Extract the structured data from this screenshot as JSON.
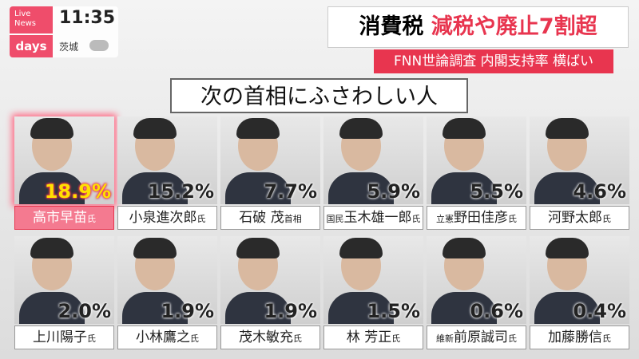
{
  "logo": {
    "line1": "Live",
    "line2": "News",
    "brand": "days"
  },
  "clock": "11:35",
  "location": "茨城",
  "headline": {
    "topic": "消費税",
    "highlight": "減税や廃止7割超"
  },
  "subheadline": "FNN世論調査 内閣支持率 横ばい",
  "panel_title": "次の首相にふさわしい人",
  "candidates": [
    {
      "name": "高市早苗",
      "suffix": "氏",
      "percent": "18.9%"
    },
    {
      "name": "小泉進次郎",
      "suffix": "氏",
      "percent": "15.2%"
    },
    {
      "name": "石破 茂",
      "suffix": "首相",
      "percent": "7.7%"
    },
    {
      "prefix": "国民",
      "name": "玉木雄一郎",
      "suffix": "氏",
      "percent": "5.9%"
    },
    {
      "prefix": "立憲",
      "name": "野田佳彦",
      "suffix": "氏",
      "percent": "5.5%"
    },
    {
      "name": "河野太郎",
      "suffix": "氏",
      "percent": "4.6%"
    },
    {
      "name": "上川陽子",
      "suffix": "氏",
      "percent": "2.0%"
    },
    {
      "name": "小林鷹之",
      "suffix": "氏",
      "percent": "1.9%"
    },
    {
      "name": "茂木敏充",
      "suffix": "氏",
      "percent": "1.9%"
    },
    {
      "name": "林 芳正",
      "suffix": "氏",
      "percent": "1.5%"
    },
    {
      "prefix": "維新",
      "name": "前原誠司",
      "suffix": "氏",
      "percent": "0.6%"
    },
    {
      "name": "加藤勝信",
      "suffix": "氏",
      "percent": "0.4%"
    }
  ]
}
